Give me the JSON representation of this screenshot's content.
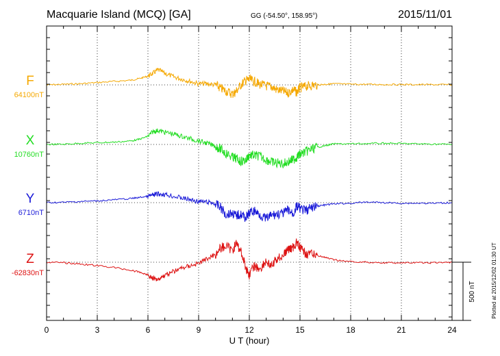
{
  "header": {
    "title": "Macquarie Island (MCQ)  [GA]",
    "coords": "GG (-54.50°, 158.95°)",
    "date": "2015/11/01"
  },
  "footer": {
    "plotted": "Plotted at 2015/12/02 01:30 UT"
  },
  "chart_data": {
    "type": "line",
    "xlabel": "U T (hour)",
    "xlim": [
      0,
      24
    ],
    "xticks": [
      0,
      3,
      6,
      9,
      12,
      15,
      18,
      21,
      24
    ],
    "xtick_labels": [
      "0",
      "3",
      "6",
      "9",
      "12",
      "15",
      "18",
      "21",
      "24"
    ],
    "scale_bar_label": "500 nT",
    "scale_bar_nT": 500,
    "grid": true,
    "series": [
      {
        "name": "F",
        "baseline": "64100nT",
        "color": "#f5a800",
        "x": [
          0,
          1,
          2,
          3,
          4,
          5,
          5.5,
          6,
          6.3,
          6.6,
          7,
          7.5,
          8,
          8.5,
          9,
          9.5,
          10,
          10.3,
          10.6,
          11,
          11.2,
          11.5,
          11.8,
          12,
          12.3,
          12.6,
          13,
          13.3,
          13.6,
          14,
          14.3,
          14.6,
          14.8,
          15,
          15.3,
          15.6,
          16,
          16.5,
          17,
          18,
          19,
          20,
          21,
          22,
          23,
          24
        ],
        "deviation": [
          0,
          5,
          10,
          20,
          30,
          40,
          55,
          75,
          100,
          130,
          100,
          70,
          50,
          30,
          10,
          10,
          0,
          -30,
          -50,
          -80,
          -60,
          0,
          40,
          45,
          30,
          5,
          -10,
          -15,
          -40,
          -55,
          -70,
          -40,
          -65,
          -25,
          -15,
          -5,
          0,
          5,
          10,
          5,
          5,
          3,
          3,
          2,
          2,
          2
        ]
      },
      {
        "name": "X",
        "baseline": "10760nT",
        "color": "#22dd22",
        "x": [
          0,
          1,
          2,
          3,
          4,
          5,
          5.5,
          6,
          6.3,
          6.6,
          7,
          7.5,
          8,
          8.5,
          9,
          9.5,
          10,
          10.3,
          10.6,
          11,
          11.2,
          11.5,
          11.8,
          12,
          12.3,
          12.6,
          13,
          13.3,
          13.6,
          14,
          14.3,
          14.6,
          14.8,
          15,
          15.3,
          15.6,
          16,
          16.5,
          17,
          18,
          19,
          20,
          21,
          22,
          23,
          24
        ],
        "deviation": [
          0,
          2,
          10,
          15,
          20,
          30,
          45,
          70,
          110,
          120,
          105,
          90,
          70,
          50,
          30,
          10,
          -15,
          -40,
          -75,
          -110,
          -120,
          -145,
          -135,
          -90,
          -95,
          -100,
          -130,
          -150,
          -160,
          -165,
          -150,
          -130,
          -110,
          -85,
          -65,
          -45,
          -25,
          -10,
          5,
          5,
          8,
          10,
          8,
          5,
          3,
          2
        ]
      },
      {
        "name": "Y",
        "baseline": "6710nT",
        "color": "#1a1ad8",
        "x": [
          0,
          1,
          2,
          3,
          4,
          5,
          5.5,
          6,
          6.3,
          6.6,
          7,
          7.5,
          8,
          8.5,
          9,
          9.5,
          10,
          10.3,
          10.6,
          11,
          11.2,
          11.5,
          11.8,
          12,
          12.3,
          12.6,
          13,
          13.3,
          13.6,
          14,
          14.3,
          14.6,
          14.8,
          15,
          15.3,
          15.6,
          16,
          16.5,
          17,
          18,
          19,
          20,
          21,
          22,
          23,
          24
        ],
        "deviation": [
          0,
          3,
          10,
          15,
          25,
          35,
          45,
          55,
          65,
          75,
          70,
          55,
          40,
          25,
          10,
          5,
          -10,
          -40,
          -100,
          -90,
          -110,
          -100,
          -130,
          -90,
          -70,
          -100,
          -140,
          -110,
          -100,
          -95,
          -60,
          -100,
          -30,
          -50,
          -70,
          -50,
          -30,
          -20,
          -10,
          -5,
          5,
          0,
          -5,
          -5,
          -5,
          0
        ]
      },
      {
        "name": "Z",
        "baseline": "-62830nT",
        "color": "#dd1111",
        "x": [
          0,
          1,
          2,
          3,
          4,
          5,
          5.5,
          6,
          6.3,
          6.6,
          7,
          7.5,
          8,
          8.5,
          9,
          9.5,
          10,
          10.3,
          10.6,
          11,
          11.2,
          11.5,
          11.8,
          12,
          12.3,
          12.6,
          13,
          13.3,
          13.6,
          14,
          14.3,
          14.6,
          14.8,
          15,
          15.3,
          15.6,
          16,
          16.5,
          17,
          18,
          19,
          20,
          21,
          22,
          23,
          24
        ],
        "deviation": [
          0,
          -5,
          -15,
          -30,
          -45,
          -70,
          -85,
          -110,
          -140,
          -145,
          -110,
          -80,
          -50,
          -30,
          -10,
          30,
          70,
          120,
          140,
          100,
          160,
          100,
          -50,
          -110,
          -30,
          -60,
          10,
          -40,
          25,
          60,
          110,
          130,
          170,
          120,
          80,
          70,
          60,
          40,
          20,
          5,
          0,
          -5,
          -5,
          -5,
          -5,
          0
        ]
      }
    ]
  }
}
